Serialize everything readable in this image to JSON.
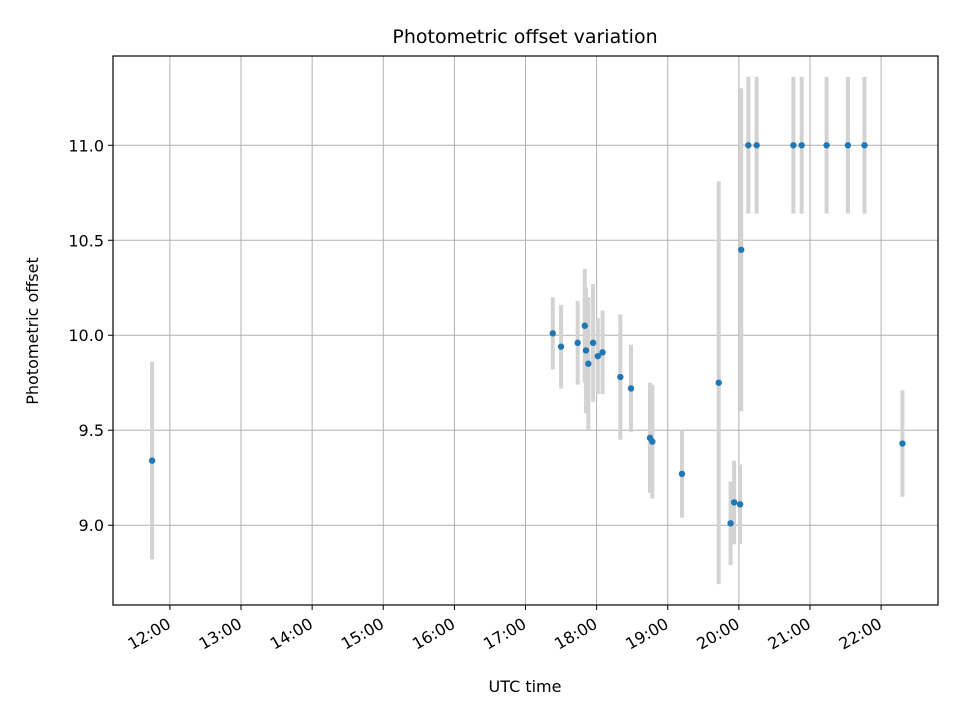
{
  "chart_data": {
    "type": "scatter",
    "title": "Photometric offset variation",
    "xlabel": "UTC time",
    "ylabel": "Photometric offset",
    "x_ticks": [
      "12:00",
      "13:00",
      "14:00",
      "15:00",
      "16:00",
      "17:00",
      "18:00",
      "19:00",
      "20:00",
      "21:00",
      "22:00"
    ],
    "y_ticks": [
      "9.0",
      "9.5",
      "10.0",
      "10.5",
      "11.0"
    ],
    "xlim": [
      "11:12",
      "22:48"
    ],
    "ylim": [
      8.58,
      11.47
    ],
    "grid": true,
    "point_color": "#1f77b4",
    "errorbar_color": "#d3d3d3",
    "series": [
      {
        "points": [
          {
            "x": "11:45",
            "y": 9.34,
            "err": 0.52
          },
          {
            "x": "17:23",
            "y": 10.01,
            "err": 0.19
          },
          {
            "x": "17:30",
            "y": 9.94,
            "err": 0.22
          },
          {
            "x": "17:44",
            "y": 9.96,
            "err": 0.22
          },
          {
            "x": "17:50",
            "y": 10.05,
            "err": 0.3
          },
          {
            "x": "17:51",
            "y": 9.92,
            "err": 0.33
          },
          {
            "x": "17:53",
            "y": 9.85,
            "err": 0.35
          },
          {
            "x": "17:57",
            "y": 9.96,
            "err": 0.31
          },
          {
            "x": "18:01",
            "y": 9.89,
            "err": 0.2
          },
          {
            "x": "18:05",
            "y": 9.91,
            "err": 0.22
          },
          {
            "x": "18:20",
            "y": 9.78,
            "err": 0.33
          },
          {
            "x": "18:29",
            "y": 9.72,
            "err": 0.23
          },
          {
            "x": "18:45",
            "y": 9.46,
            "err": 0.29
          },
          {
            "x": "18:47",
            "y": 9.44,
            "err": 0.3
          },
          {
            "x": "19:12",
            "y": 9.27,
            "err": 0.23
          },
          {
            "x": "19:43",
            "y": 9.75,
            "err": 1.06
          },
          {
            "x": "19:53",
            "y": 9.01,
            "err": 0.22
          },
          {
            "x": "19:56",
            "y": 9.12,
            "err": 0.22
          },
          {
            "x": "20:01",
            "y": 9.11,
            "err": 0.21
          },
          {
            "x": "20:02",
            "y": 10.45,
            "err": 0.85
          },
          {
            "x": "20:08",
            "y": 11.0,
            "err": 0.36
          },
          {
            "x": "20:15",
            "y": 11.0,
            "err": 0.36
          },
          {
            "x": "20:46",
            "y": 11.0,
            "err": 0.36
          },
          {
            "x": "20:53",
            "y": 11.0,
            "err": 0.36
          },
          {
            "x": "21:14",
            "y": 11.0,
            "err": 0.36
          },
          {
            "x": "21:32",
            "y": 11.0,
            "err": 0.36
          },
          {
            "x": "21:46",
            "y": 11.0,
            "err": 0.36
          },
          {
            "x": "22:18",
            "y": 9.43,
            "err": 0.28
          }
        ]
      }
    ]
  }
}
